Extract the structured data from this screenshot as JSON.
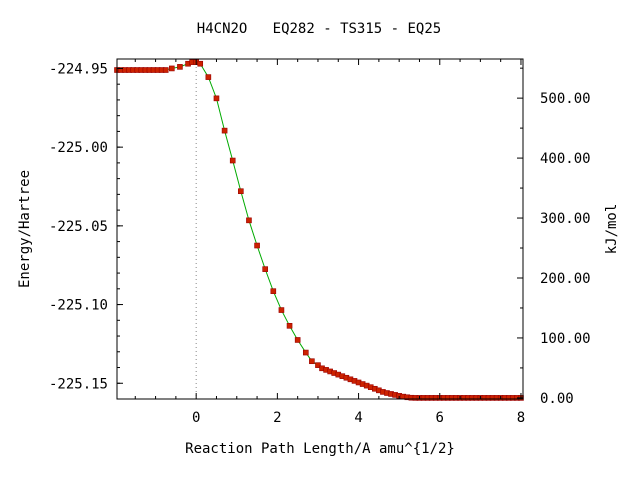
{
  "chart_data": {
    "type": "line",
    "title": "H4CN2O   EQ282 - TS315 - EQ25",
    "xlabel": "Reaction Path Length/A amu^{1/2}",
    "ylabel": "Energy/Hartree",
    "ylabel_right": "kJ/mol",
    "xlim": [
      -1.95,
      8.05
    ],
    "ylim": [
      -225.16,
      -224.944
    ],
    "x_ticks": [
      0,
      2,
      4,
      6,
      8
    ],
    "x_tick_labels": [
      "0",
      "2",
      "4",
      "6",
      "8"
    ],
    "y_ticks": [
      -224.95,
      -225.0,
      -225.05,
      -225.1,
      -225.15
    ],
    "y_tick_labels": [
      "-224.95",
      "-225.00",
      "-225.05",
      "-225.10",
      "-225.15"
    ],
    "y2_ticks": [
      0,
      100,
      200,
      300,
      400,
      500
    ],
    "y2_tick_labels": [
      "0.00",
      "100.00",
      "200.00",
      "300.00",
      "400.00",
      "500.00"
    ],
    "y2_zero_hartree": -225.1593,
    "y2_kj_per_hartree": 2625.5,
    "ts_x": 0,
    "colors": {
      "line": "#00aa00",
      "marker": "#cc2200",
      "marker_edge": "#990000",
      "ts_line": "#888888",
      "axis": "#000000"
    },
    "series": [
      {
        "x": [
          -1.95,
          -1.85,
          -1.75,
          -1.65,
          -1.55,
          -1.45,
          -1.35,
          -1.25,
          -1.15,
          -1.05,
          -0.95,
          -0.85,
          -0.75,
          -0.6,
          -0.4,
          -0.2,
          -0.1,
          0,
          0.1,
          0.3,
          0.5,
          0.7,
          0.9,
          1.1,
          1.3,
          1.5,
          1.7,
          1.9,
          2.1,
          2.3,
          2.5,
          2.7,
          2.85,
          3.0,
          3.1,
          3.2,
          3.3,
          3.4,
          3.5,
          3.6,
          3.7,
          3.8,
          3.9,
          4.0,
          4.1,
          4.2,
          4.3,
          4.4,
          4.5,
          4.6,
          4.7,
          4.8,
          4.9,
          5.0,
          5.1,
          5.2,
          5.3,
          5.4,
          5.5,
          5.6,
          5.7,
          5.8,
          5.9,
          6.0,
          6.1,
          6.2,
          6.3,
          6.4,
          6.5,
          6.6,
          6.7,
          6.8,
          6.9,
          7.0,
          7.1,
          7.2,
          7.3,
          7.4,
          7.5,
          7.6,
          7.7,
          7.8,
          7.9,
          8.0
        ],
        "y": [
          -224.951,
          -224.951,
          -224.951,
          -224.951,
          -224.951,
          -224.951,
          -224.951,
          -224.951,
          -224.951,
          -224.951,
          -224.951,
          -224.951,
          -224.951,
          -224.95,
          -224.949,
          -224.947,
          -224.946,
          -224.946,
          -224.947,
          -224.9555,
          -224.969,
          -224.9895,
          -225.0085,
          -225.028,
          -225.0465,
          -225.0625,
          -225.0775,
          -225.0915,
          -225.1035,
          -225.1135,
          -225.1225,
          -225.1305,
          -225.136,
          -225.1385,
          -225.1405,
          -225.1415,
          -225.1425,
          -225.1435,
          -225.1445,
          -225.1455,
          -225.1465,
          -225.1475,
          -225.1485,
          -225.1495,
          -225.1505,
          -225.1515,
          -225.1525,
          -225.1535,
          -225.1545,
          -225.1555,
          -225.1562,
          -225.1568,
          -225.1574,
          -225.158,
          -225.1585,
          -225.1589,
          -225.1592,
          -225.1593,
          -225.1593,
          -225.1593,
          -225.1593,
          -225.1593,
          -225.1593,
          -225.1593,
          -225.1593,
          -225.1593,
          -225.1593,
          -225.1593,
          -225.1593,
          -225.1593,
          -225.1593,
          -225.1593,
          -225.1593,
          -225.1593,
          -225.1593,
          -225.1593,
          -225.1593,
          -225.1593,
          -225.1593,
          -225.1593,
          -225.1593,
          -225.1593,
          -225.1593,
          -225.1593
        ]
      }
    ]
  }
}
